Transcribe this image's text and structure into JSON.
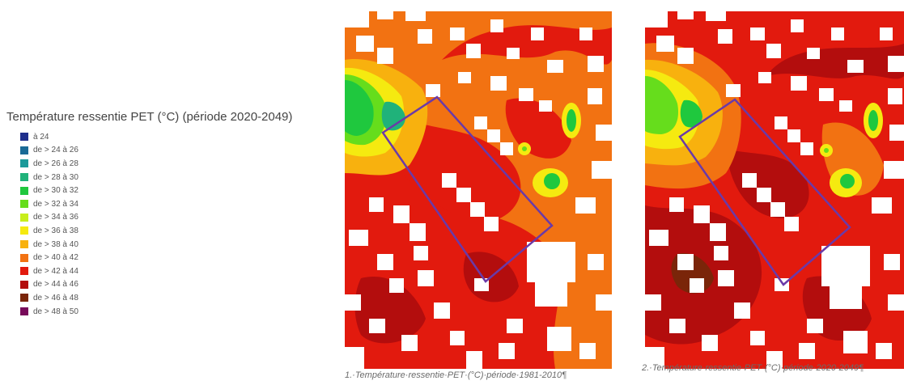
{
  "legend": {
    "title": "Température ressentie PET (°C) (période 2020-2049)",
    "items": [
      {
        "label": "à 24",
        "color": "#1f2f8c"
      },
      {
        "label": "de > 24 à 26",
        "color": "#1a6a96"
      },
      {
        "label": "de > 26 à 28",
        "color": "#1b9a9a"
      },
      {
        "label": "de > 28 à 30",
        "color": "#20b27a"
      },
      {
        "label": "de > 30 à 32",
        "color": "#1fc83e"
      },
      {
        "label": "de > 32 à 34",
        "color": "#66dd1c"
      },
      {
        "label": "de > 34 à 36",
        "color": "#c8ee1c"
      },
      {
        "label": "de > 36 à 38",
        "color": "#f5ea10"
      },
      {
        "label": "de > 38 à 40",
        "color": "#f8b10e"
      },
      {
        "label": "de > 40 à 42",
        "color": "#f27212"
      },
      {
        "label": "de > 42 à 44",
        "color": "#e21a0e"
      },
      {
        "label": "de > 44 à 46",
        "color": "#b30d0d"
      },
      {
        "label": "de > 46 à 48",
        "color": "#7a2509"
      },
      {
        "label": "de > 48 à 50",
        "color": "#780a5a"
      }
    ]
  },
  "maps": [
    {
      "caption": "1.·Température·ressentie·PET·(°C)·période·1981-2010¶"
    },
    {
      "caption": "2.·Température·ressentie·PET·(°C)·période·2020-2049¶"
    }
  ],
  "colors": {
    "outline": "#6a3aa8",
    "void": "#ffffff"
  }
}
